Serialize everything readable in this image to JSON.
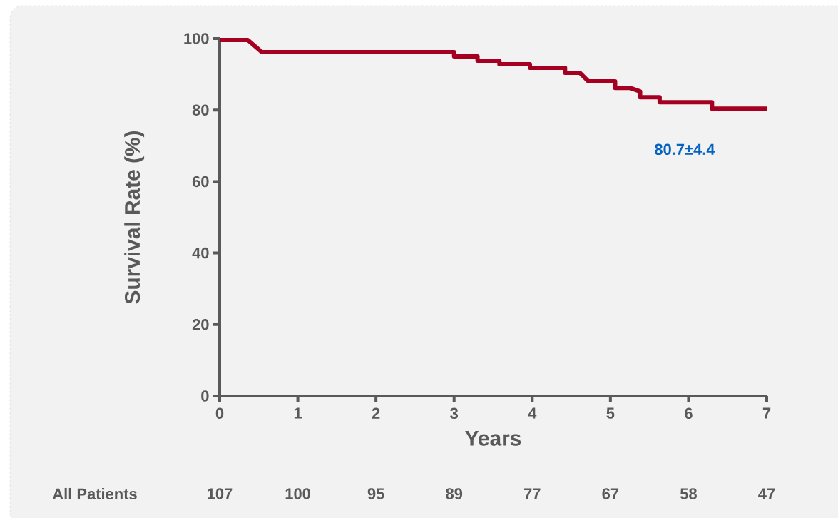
{
  "chart_data": {
    "type": "line",
    "xlabel": "Years",
    "ylabel": "Survival Rate (%)",
    "xlim": [
      0,
      7
    ],
    "xticks": [
      0,
      1,
      2,
      3,
      4,
      5,
      6,
      7
    ],
    "ylim": [
      0,
      100
    ],
    "yticks": [
      0,
      20,
      40,
      60,
      80,
      100
    ],
    "grid": false,
    "marker": "none",
    "line_style": "solid",
    "series": [
      {
        "color": "#a50021",
        "x": [
          0,
          0.36,
          0.54,
          3.0,
          3.0,
          3.3,
          3.3,
          3.58,
          3.58,
          3.97,
          3.97,
          4.42,
          4.42,
          4.61,
          4.72,
          5.06,
          5.06,
          5.25,
          5.38,
          5.38,
          5.63,
          5.63,
          6.3,
          6.3,
          7.0
        ],
        "values": [
          99.6,
          99.6,
          96.2,
          96.2,
          95.0,
          95.0,
          93.8,
          93.8,
          92.8,
          92.8,
          91.8,
          91.8,
          90.4,
          90.4,
          88.0,
          88.0,
          86.2,
          86.2,
          85.2,
          83.6,
          83.6,
          82.2,
          82.2,
          80.4,
          80.4
        ]
      }
    ],
    "annotations": [
      "80.7±4.4",
      "All Patients",
      "107",
      "100",
      "95",
      "89",
      "77",
      "67",
      "58",
      "47"
    ]
  }
}
